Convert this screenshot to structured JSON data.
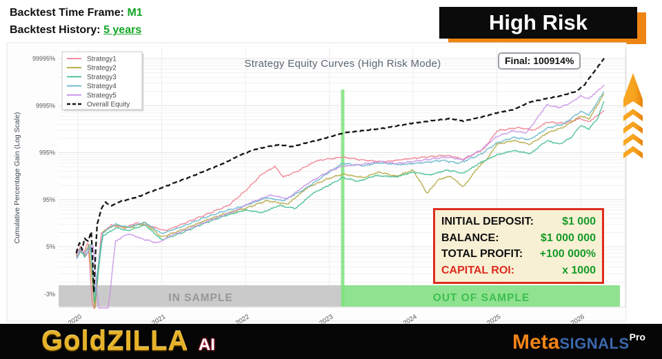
{
  "header": {
    "line1_label": "Backtest Time Frame:",
    "line1_value": "M1",
    "line2_label": "Backtest History:",
    "line2_value": "5 years"
  },
  "banner": {
    "label": "High Risk"
  },
  "final_badge": "Final: 100914%",
  "info_box": {
    "rows": [
      {
        "label": "INITIAL DEPOSIT:",
        "value": "$1 000",
        "label_color": "#101010"
      },
      {
        "label": "BALANCE:",
        "value": "$1 000 000",
        "label_color": "#101010"
      },
      {
        "label": "TOTAL PROFIT:",
        "value": "+100 000%",
        "label_color": "#101010"
      },
      {
        "label": "CAPITAL ROI:",
        "value": "x 1000",
        "label_color": "#DC2B1F"
      }
    ]
  },
  "footer": {
    "brand_left_main": "GoldZILLA",
    "brand_left_suffix": "AI",
    "brand_right_meta": "Meta",
    "brand_right_signals": "SIGNALS",
    "brand_right_pro": "Pro"
  },
  "chart_data": {
    "type": "line",
    "title": "Strategy Equity Curves (High Risk Mode)",
    "ylabel": "Cumulative Percentage Gain (Log Scale)",
    "y_scale": "log10(gain%+5)",
    "x_range": [
      2019.77,
      2026.5
    ],
    "grid": true,
    "legend_position": "upper-left",
    "x_tick_labels": [
      "2020",
      "2021",
      "2022",
      "2023",
      "2024",
      "2025",
      "2026"
    ],
    "x_tick_years": [
      2020,
      2021,
      2022,
      2023,
      2024,
      2025,
      2026
    ],
    "y_ticks": [
      {
        "label": "99995%",
        "value": 99995
      },
      {
        "label": "9995%",
        "value": 9995
      },
      {
        "label": "995%",
        "value": 995
      },
      {
        "label": "95%",
        "value": 95
      },
      {
        "label": "5%",
        "value": 5
      },
      {
        "label": "-3%",
        "value": -3
      }
    ],
    "final_annotation": {
      "label": "Final: 100914%",
      "value": 100914
    },
    "split_year": 2023.16,
    "split_line_color": "#7DE37D",
    "regions": [
      {
        "label": "IN SAMPLE",
        "from": 2019.77,
        "to": 2023.16,
        "color": "#CACACA",
        "text_color": "#979797"
      },
      {
        "label": "OUT OF SAMPLE",
        "from": 2023.16,
        "to": 2026.47,
        "color": "#8FE28F",
        "text_color": "#3FBE51"
      }
    ],
    "series": [
      {
        "name": "Strategy1",
        "color": "#ef7e90",
        "dash": null,
        "points": [
          [
            2019.98,
            2.5
          ],
          [
            2020.03,
            5
          ],
          [
            2020.07,
            3
          ],
          [
            2020.12,
            7
          ],
          [
            2020.19,
            -4.3
          ],
          [
            2020.28,
            14
          ],
          [
            2020.4,
            24
          ],
          [
            2020.55,
            20
          ],
          [
            2020.7,
            27
          ],
          [
            2020.9,
            21
          ],
          [
            2021.05,
            17
          ],
          [
            2021.3,
            28
          ],
          [
            2021.55,
            45
          ],
          [
            2021.8,
            71
          ],
          [
            2022.0,
            150
          ],
          [
            2022.2,
            350
          ],
          [
            2022.35,
            500
          ],
          [
            2022.45,
            300
          ],
          [
            2022.6,
            380
          ],
          [
            2022.85,
            670
          ],
          [
            2023.16,
            800
          ],
          [
            2023.4,
            690
          ],
          [
            2023.65,
            630
          ],
          [
            2023.9,
            720
          ],
          [
            2024.15,
            800
          ],
          [
            2024.4,
            870
          ],
          [
            2024.6,
            720
          ],
          [
            2024.85,
            1200
          ],
          [
            2025.0,
            2900
          ],
          [
            2025.25,
            3400
          ],
          [
            2025.45,
            3000
          ],
          [
            2025.6,
            4450
          ],
          [
            2025.8,
            4200
          ],
          [
            2026.0,
            5300
          ],
          [
            2026.1,
            4500
          ],
          [
            2026.28,
            7900
          ]
        ]
      },
      {
        "name": "Strategy2",
        "color": "#b2a73f",
        "dash": null,
        "points": [
          [
            2019.98,
            2
          ],
          [
            2020.03,
            4
          ],
          [
            2020.08,
            2.5
          ],
          [
            2020.13,
            6
          ],
          [
            2020.2,
            -3.8
          ],
          [
            2020.3,
            16
          ],
          [
            2020.45,
            24
          ],
          [
            2020.6,
            20
          ],
          [
            2020.8,
            27
          ],
          [
            2021.0,
            11
          ],
          [
            2021.25,
            18
          ],
          [
            2021.5,
            30
          ],
          [
            2021.75,
            45
          ],
          [
            2022.0,
            60
          ],
          [
            2022.25,
            90
          ],
          [
            2022.5,
            75
          ],
          [
            2022.75,
            180
          ],
          [
            2023.0,
            280
          ],
          [
            2023.16,
            345
          ],
          [
            2023.4,
            290
          ],
          [
            2023.6,
            380
          ],
          [
            2023.8,
            310
          ],
          [
            2024.0,
            420
          ],
          [
            2024.17,
            130
          ],
          [
            2024.3,
            260
          ],
          [
            2024.45,
            310
          ],
          [
            2024.6,
            180
          ],
          [
            2024.75,
            420
          ],
          [
            2024.9,
            800
          ],
          [
            2025.0,
            1500
          ],
          [
            2025.2,
            1800
          ],
          [
            2025.4,
            1500
          ],
          [
            2025.6,
            2600
          ],
          [
            2025.8,
            3500
          ],
          [
            2026.0,
            6000
          ],
          [
            2026.1,
            5200
          ],
          [
            2026.28,
            17800
          ]
        ]
      },
      {
        "name": "Strategy3",
        "color": "#40bd8e",
        "dash": null,
        "points": [
          [
            2019.98,
            1.5
          ],
          [
            2020.03,
            3.5
          ],
          [
            2020.08,
            2
          ],
          [
            2020.15,
            5
          ],
          [
            2020.2,
            -3.5
          ],
          [
            2020.3,
            12
          ],
          [
            2020.45,
            20
          ],
          [
            2020.6,
            17
          ],
          [
            2020.8,
            24
          ],
          [
            2021.0,
            9
          ],
          [
            2021.25,
            15
          ],
          [
            2021.5,
            26
          ],
          [
            2021.75,
            40
          ],
          [
            2022.0,
            55
          ],
          [
            2022.2,
            48
          ],
          [
            2022.4,
            70
          ],
          [
            2022.6,
            60
          ],
          [
            2022.8,
            130
          ],
          [
            2023.0,
            200
          ],
          [
            2023.16,
            290
          ],
          [
            2023.35,
            240
          ],
          [
            2023.55,
            320
          ],
          [
            2023.8,
            300
          ],
          [
            2024.0,
            380
          ],
          [
            2024.2,
            330
          ],
          [
            2024.4,
            420
          ],
          [
            2024.6,
            360
          ],
          [
            2024.8,
            600
          ],
          [
            2025.0,
            890
          ],
          [
            2025.2,
            1100
          ],
          [
            2025.4,
            950
          ],
          [
            2025.6,
            1800
          ],
          [
            2025.75,
            1500
          ],
          [
            2025.9,
            2200
          ],
          [
            2026.0,
            3800
          ],
          [
            2026.1,
            3200
          ],
          [
            2026.2,
            5200
          ],
          [
            2026.28,
            12300
          ]
        ]
      },
      {
        "name": "Strategy4",
        "color": "#64b6cb",
        "dash": null,
        "points": [
          [
            2019.98,
            2
          ],
          [
            2020.03,
            4.5
          ],
          [
            2020.08,
            3
          ],
          [
            2020.15,
            6
          ],
          [
            2020.2,
            -3
          ],
          [
            2020.3,
            15
          ],
          [
            2020.45,
            25
          ],
          [
            2020.6,
            21
          ],
          [
            2020.8,
            28
          ],
          [
            2021.0,
            14
          ],
          [
            2021.25,
            22
          ],
          [
            2021.5,
            36
          ],
          [
            2021.75,
            52
          ],
          [
            2022.0,
            70
          ],
          [
            2022.25,
            105
          ],
          [
            2022.45,
            90
          ],
          [
            2022.7,
            160
          ],
          [
            2023.0,
            380
          ],
          [
            2023.16,
            590
          ],
          [
            2023.4,
            520
          ],
          [
            2023.6,
            600
          ],
          [
            2023.85,
            550
          ],
          [
            2024.1,
            600
          ],
          [
            2024.35,
            680
          ],
          [
            2024.55,
            590
          ],
          [
            2024.8,
            900
          ],
          [
            2025.0,
            1600
          ],
          [
            2025.2,
            2100
          ],
          [
            2025.4,
            1900
          ],
          [
            2025.6,
            3300
          ],
          [
            2025.8,
            4100
          ],
          [
            2026.0,
            7500
          ],
          [
            2026.1,
            6300
          ],
          [
            2026.28,
            19800
          ]
        ]
      },
      {
        "name": "Strategy5",
        "color": "#c791e6",
        "dash": null,
        "points": [
          [
            2019.98,
            1.8
          ],
          [
            2020.04,
            4
          ],
          [
            2020.1,
            2.5
          ],
          [
            2020.18,
            6
          ],
          [
            2020.25,
            -4
          ],
          [
            2020.33,
            -4.5
          ],
          [
            2020.45,
            8
          ],
          [
            2020.6,
            14
          ],
          [
            2020.75,
            10
          ],
          [
            2020.95,
            7
          ],
          [
            2021.1,
            12
          ],
          [
            2021.35,
            20
          ],
          [
            2021.6,
            33
          ],
          [
            2021.85,
            50
          ],
          [
            2022.05,
            80
          ],
          [
            2022.3,
            120
          ],
          [
            2022.5,
            100
          ],
          [
            2022.75,
            220
          ],
          [
            2023.0,
            400
          ],
          [
            2023.16,
            510
          ],
          [
            2023.4,
            560
          ],
          [
            2023.6,
            640
          ],
          [
            2023.8,
            580
          ],
          [
            2024.0,
            640
          ],
          [
            2024.2,
            720
          ],
          [
            2024.4,
            800
          ],
          [
            2024.6,
            700
          ],
          [
            2024.8,
            1100
          ],
          [
            2025.0,
            2200
          ],
          [
            2025.2,
            2900
          ],
          [
            2025.35,
            2600
          ],
          [
            2025.5,
            6000
          ],
          [
            2025.6,
            10400
          ],
          [
            2025.75,
            9000
          ],
          [
            2025.9,
            12000
          ],
          [
            2026.0,
            16000
          ],
          [
            2026.1,
            14000
          ],
          [
            2026.28,
            27500
          ]
        ]
      },
      {
        "name": "Overall Equity",
        "color": "#161616",
        "dash": "7 4",
        "points": [
          [
            2019.98,
            3
          ],
          [
            2020.02,
            7
          ],
          [
            2020.05,
            4
          ],
          [
            2020.08,
            10
          ],
          [
            2020.12,
            8
          ],
          [
            2020.16,
            16
          ],
          [
            2020.19,
            -2.9
          ],
          [
            2020.23,
            25
          ],
          [
            2020.28,
            60
          ],
          [
            2020.33,
            82
          ],
          [
            2020.4,
            68
          ],
          [
            2020.5,
            86
          ],
          [
            2020.6,
            96
          ],
          [
            2020.75,
            115
          ],
          [
            2020.9,
            150
          ],
          [
            2021.05,
            188
          ],
          [
            2021.25,
            260
          ],
          [
            2021.5,
            390
          ],
          [
            2021.75,
            600
          ],
          [
            2021.95,
            900
          ],
          [
            2022.1,
            1150
          ],
          [
            2022.25,
            1320
          ],
          [
            2022.4,
            1460
          ],
          [
            2022.55,
            1340
          ],
          [
            2022.7,
            1560
          ],
          [
            2022.9,
            1900
          ],
          [
            2023.16,
            2600
          ],
          [
            2023.45,
            3000
          ],
          [
            2023.7,
            3400
          ],
          [
            2023.95,
            4100
          ],
          [
            2024.2,
            4700
          ],
          [
            2024.45,
            5300
          ],
          [
            2024.6,
            4700
          ],
          [
            2024.8,
            5600
          ],
          [
            2025.0,
            7000
          ],
          [
            2025.2,
            8200
          ],
          [
            2025.4,
            12000
          ],
          [
            2025.55,
            13500
          ],
          [
            2025.75,
            16000
          ],
          [
            2025.95,
            20000
          ],
          [
            2026.05,
            28000
          ],
          [
            2026.12,
            42000
          ],
          [
            2026.2,
            65000
          ],
          [
            2026.28,
            100914
          ]
        ]
      }
    ]
  }
}
